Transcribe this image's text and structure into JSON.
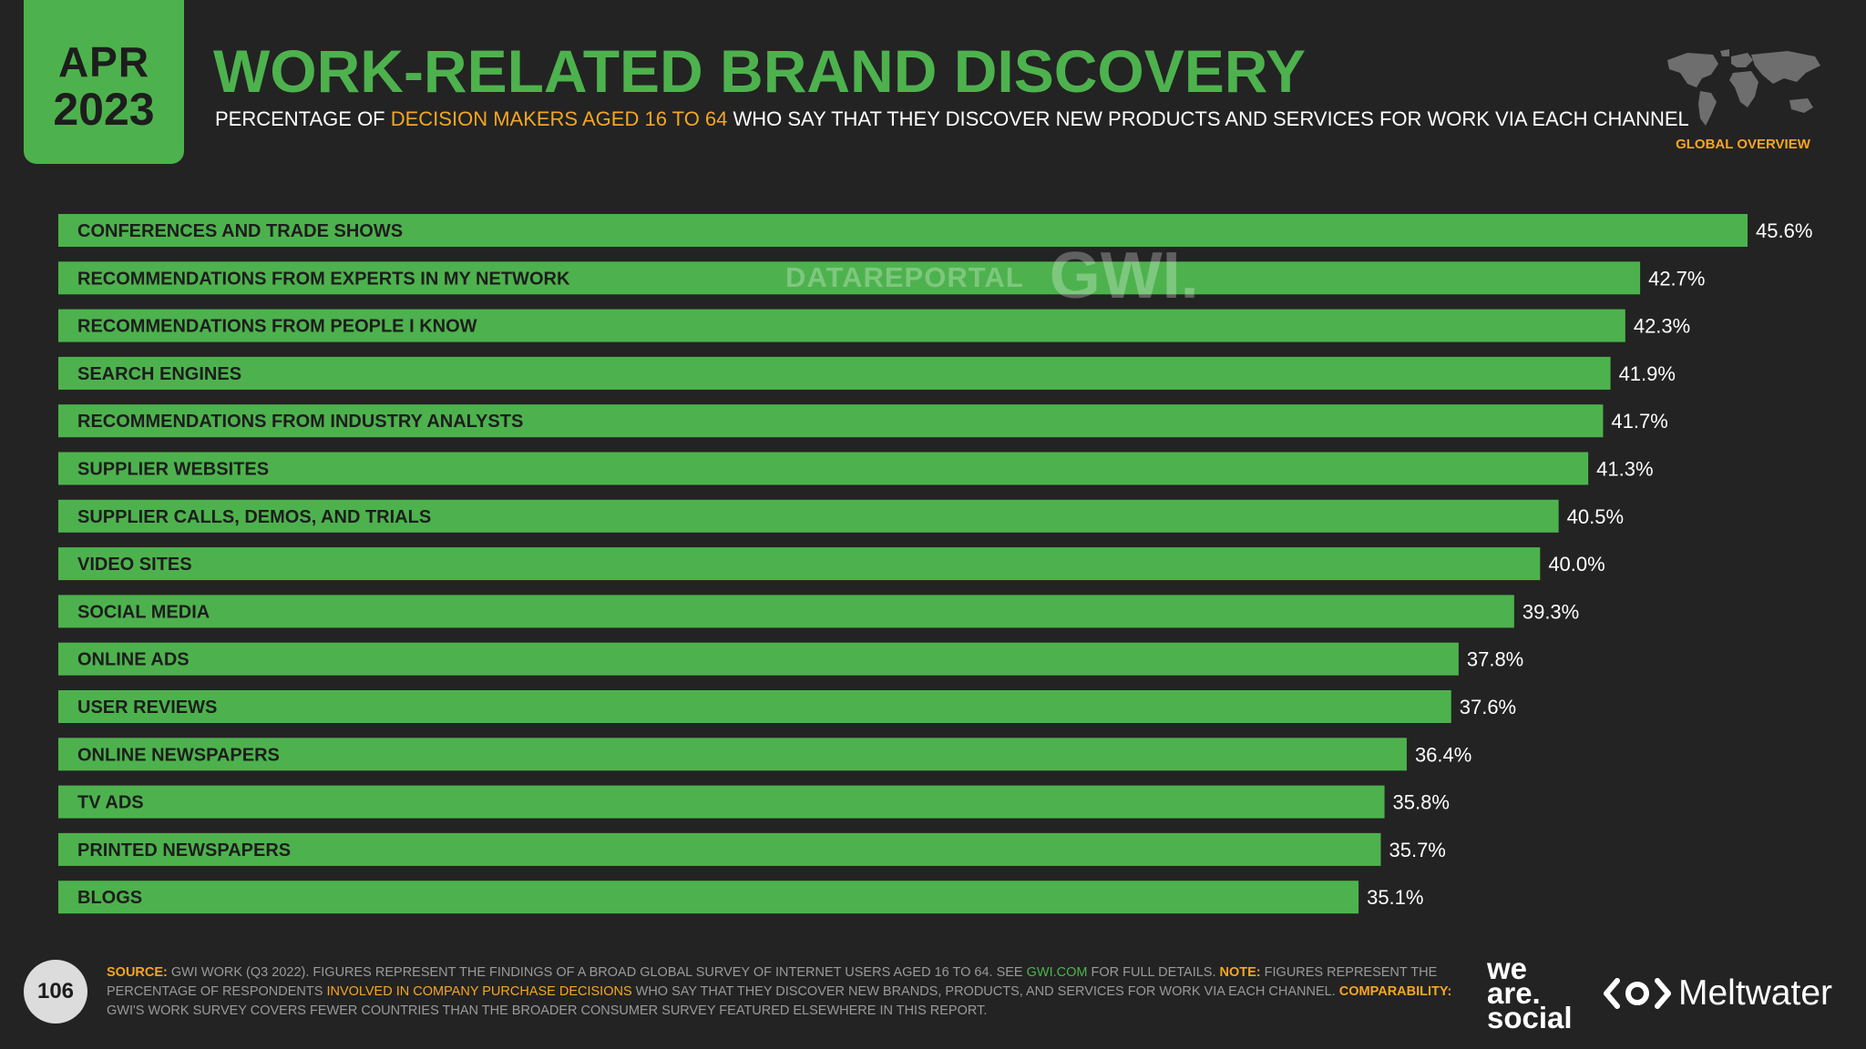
{
  "header": {
    "month": "APR",
    "year": "2023",
    "title": "WORK-RELATED BRAND DISCOVERY",
    "subtitle_pre": "PERCENTAGE OF ",
    "subtitle_highlight": "DECISION MAKERS AGED 16 TO 64",
    "subtitle_post": " WHO SAY THAT THEY DISCOVER NEW PRODUCTS AND SERVICES FOR WORK VIA EACH CHANNEL",
    "overview_label": "GLOBAL OVERVIEW"
  },
  "watermark": {
    "datareportal": "DATAREPORTAL",
    "gwi": "GWI."
  },
  "colors": {
    "accent": "#4db24d",
    "highlight": "#f5a623",
    "background": "#232323"
  },
  "chart_data": {
    "type": "bar",
    "orientation": "horizontal",
    "title": "WORK-RELATED BRAND DISCOVERY",
    "categories": [
      "CONFERENCES AND TRADE SHOWS",
      "RECOMMENDATIONS FROM EXPERTS IN MY NETWORK",
      "RECOMMENDATIONS FROM PEOPLE I KNOW",
      "SEARCH ENGINES",
      "RECOMMENDATIONS FROM INDUSTRY ANALYSTS",
      "SUPPLIER WEBSITES",
      "SUPPLIER CALLS, DEMOS, AND TRIALS",
      "VIDEO SITES",
      "SOCIAL MEDIA",
      "ONLINE ADS",
      "USER REVIEWS",
      "ONLINE NEWSPAPERS",
      "TV ADS",
      "PRINTED NEWSPAPERS",
      "BLOGS"
    ],
    "values": [
      45.6,
      42.7,
      42.3,
      41.9,
      41.7,
      41.3,
      40.5,
      40.0,
      39.3,
      37.8,
      37.6,
      36.4,
      35.8,
      35.7,
      35.1
    ],
    "value_labels": [
      "45.6%",
      "42.7%",
      "42.3%",
      "41.9%",
      "41.7%",
      "41.3%",
      "40.5%",
      "40.0%",
      "39.3%",
      "37.8%",
      "37.6%",
      "36.4%",
      "35.8%",
      "35.7%",
      "35.1%"
    ],
    "unit": "%",
    "xlim": [
      0,
      45.6
    ]
  },
  "footer": {
    "page_number": "106",
    "source_label": "SOURCE:",
    "source_text": " GWI WORK (Q3 2022). FIGURES REPRESENT THE FINDINGS OF A BROAD GLOBAL SURVEY OF INTERNET USERS AGED 16 TO 64. SEE ",
    "source_link": "GWI.COM",
    "source_text2": " FOR FULL DETAILS. ",
    "note_label": "NOTE:",
    "note_text": " FIGURES REPRESENT THE PERCENTAGE OF RESPONDENTS ",
    "note_highlight": "INVOLVED IN COMPANY PURCHASE DECISIONS",
    "note_text2": " WHO SAY THAT THEY DISCOVER NEW BRANDS, PRODUCTS, AND SERVICES FOR WORK VIA EACH CHANNEL. ",
    "comparability_label": "COMPARABILITY:",
    "comparability_text": " GWI'S WORK SURVEY COVERS FEWER COUNTRIES THAN THE BROADER CONSUMER SURVEY FEATURED ELSEWHERE IN THIS REPORT.",
    "brand_we": "we",
    "brand_are": "are.",
    "brand_social": "social",
    "brand_meltwater": "Meltwater"
  }
}
